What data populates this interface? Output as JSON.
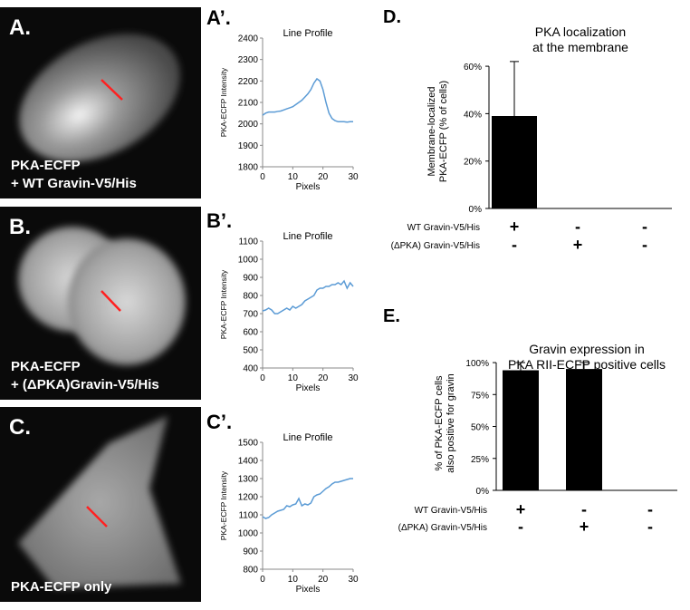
{
  "image_panels": [
    {
      "label": "A.",
      "caption": [
        "PKA-ECFP",
        "+ WT Gravin-V5/His"
      ]
    },
    {
      "label": "B.",
      "caption": [
        "PKA-ECFP",
        "+ (ΔPKA)Gravin-V5/His"
      ]
    },
    {
      "label": "C.",
      "caption": [
        "PKA-ECFP only"
      ]
    }
  ],
  "chart_data": [
    {
      "type": "line",
      "label": "A’.",
      "title": "Line Profile",
      "xlabel": "Pixels",
      "ylabel": "PKA-ECFP Intensity",
      "color": "#5b9bd5",
      "x": [
        0,
        1,
        2,
        3,
        4,
        5,
        6,
        7,
        8,
        9,
        10,
        11,
        12,
        13,
        14,
        15,
        16,
        17,
        18,
        19,
        20,
        21,
        22,
        23,
        24,
        25,
        26,
        27,
        28,
        29,
        30
      ],
      "values": [
        2040,
        2050,
        2055,
        2055,
        2055,
        2058,
        2060,
        2065,
        2070,
        2075,
        2080,
        2090,
        2100,
        2110,
        2125,
        2140,
        2160,
        2190,
        2210,
        2200,
        2160,
        2100,
        2050,
        2025,
        2015,
        2010,
        2010,
        2010,
        2008,
        2010,
        2010
      ],
      "xlim": [
        0,
        30
      ],
      "xticks": [
        0,
        10,
        20,
        30
      ],
      "ylim": [
        1800,
        2400
      ],
      "yticks": [
        1800,
        1900,
        2000,
        2100,
        2200,
        2300,
        2400
      ]
    },
    {
      "type": "line",
      "label": "B’.",
      "title": "Line Profile",
      "xlabel": "Pixels",
      "ylabel": "PKA-ECFP Intensity",
      "color": "#5b9bd5",
      "x": [
        0,
        1,
        2,
        3,
        4,
        5,
        6,
        7,
        8,
        9,
        10,
        11,
        12,
        13,
        14,
        15,
        16,
        17,
        18,
        19,
        20,
        21,
        22,
        23,
        24,
        25,
        26,
        27,
        28,
        29,
        30
      ],
      "values": [
        715,
        720,
        730,
        720,
        700,
        700,
        710,
        720,
        730,
        720,
        740,
        730,
        740,
        750,
        770,
        780,
        790,
        800,
        830,
        840,
        840,
        850,
        850,
        860,
        860,
        870,
        860,
        880,
        840,
        870,
        850
      ],
      "xlim": [
        0,
        30
      ],
      "xticks": [
        0,
        10,
        20,
        30
      ],
      "ylim": [
        400,
        1100
      ],
      "yticks": [
        400,
        500,
        600,
        700,
        800,
        900,
        1000,
        1100
      ]
    },
    {
      "type": "line",
      "label": "C’.",
      "title": "Line Profile",
      "xlabel": "Pixels",
      "ylabel": "PKA-ECFP Intensity",
      "color": "#5b9bd5",
      "x": [
        0,
        1,
        2,
        3,
        4,
        5,
        6,
        7,
        8,
        9,
        10,
        11,
        12,
        13,
        14,
        15,
        16,
        17,
        18,
        19,
        20,
        21,
        22,
        23,
        24,
        25,
        26,
        27,
        28,
        29,
        30
      ],
      "values": [
        1090,
        1080,
        1085,
        1100,
        1110,
        1120,
        1125,
        1130,
        1150,
        1145,
        1155,
        1160,
        1190,
        1150,
        1160,
        1155,
        1165,
        1200,
        1210,
        1215,
        1230,
        1245,
        1255,
        1270,
        1280,
        1280,
        1285,
        1290,
        1295,
        1300,
        1300
      ],
      "xlim": [
        0,
        30
      ],
      "xticks": [
        0,
        10,
        20,
        30
      ],
      "ylim": [
        800,
        1500
      ],
      "yticks": [
        800,
        900,
        1000,
        1100,
        1200,
        1300,
        1400,
        1500
      ]
    },
    {
      "type": "bar",
      "label": "D.",
      "title_lines": [
        "PKA localization",
        "at the membrane"
      ],
      "ylabel_lines": [
        "Membrane-localized",
        "PKA-ECFP (% of cells)"
      ],
      "color": "#000000",
      "conditions": [
        {
          "name": "WT Gravin-V5/His",
          "marks": [
            "+",
            "-",
            "-"
          ]
        },
        {
          "name": "(ΔPKA) Gravin-V5/His",
          "marks": [
            "-",
            "+",
            "-"
          ]
        }
      ],
      "values": [
        39,
        0,
        0
      ],
      "errors": [
        23,
        0,
        0
      ],
      "ylim": [
        0,
        65
      ],
      "yticks": [
        {
          "value": 0,
          "label": "0%"
        },
        {
          "value": 20,
          "label": "20%"
        },
        {
          "value": 40,
          "label": "40%"
        },
        {
          "value": 60,
          "label": "60%"
        }
      ]
    },
    {
      "type": "bar",
      "label": "E.",
      "title_lines": [
        "Gravin expression in",
        "PKA RII-ECFP positive cells"
      ],
      "ylabel_lines": [
        "% of PKA-ECFP cells",
        "also positive for gravin"
      ],
      "color": "#000000",
      "conditions": [
        {
          "name": "WT Gravin-V5/His",
          "marks": [
            "+",
            "-",
            "-"
          ]
        },
        {
          "name": "(ΔPKA) Gravin-V5/His",
          "marks": [
            "-",
            "+",
            "-"
          ]
        }
      ],
      "values": [
        94,
        95,
        0
      ],
      "errors": [
        6,
        5,
        0
      ],
      "ylim": [
        0,
        105
      ],
      "yticks": [
        {
          "value": 0,
          "label": "0%"
        },
        {
          "value": 25,
          "label": "25%"
        },
        {
          "value": 50,
          "label": "50%"
        },
        {
          "value": 75,
          "label": "75%"
        },
        {
          "value": 100,
          "label": "100%"
        }
      ]
    }
  ]
}
